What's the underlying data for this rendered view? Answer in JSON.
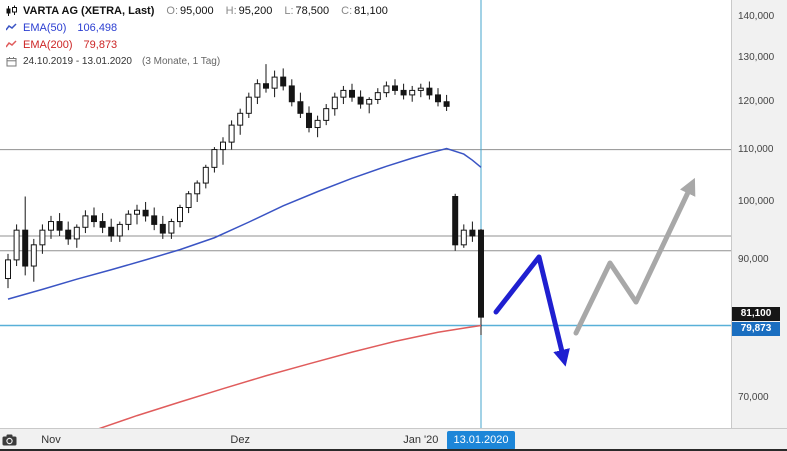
{
  "header": {
    "title": "VARTA AG (XETRA, Last)",
    "o_label": "O:",
    "o_value": "95,000",
    "h_label": "H:",
    "h_value": "95,200",
    "l_label": "L:",
    "l_value": "78,500",
    "c_label": "C:",
    "c_value": "81,100",
    "ema50_label": "EMA(50)",
    "ema50_value": "106,498",
    "ema200_label": "EMA(200)",
    "ema200_value": "79,873",
    "date_range": "24.10.2019 - 13.01.2020",
    "period_info": "(3 Monate, 1 Tag)"
  },
  "axes": {
    "y_ticks": [
      {
        "label": "140,000",
        "value": 140000
      },
      {
        "label": "130,000",
        "value": 130000
      },
      {
        "label": "120,000",
        "value": 120000
      },
      {
        "label": "110,000",
        "value": 110000
      },
      {
        "label": "100,000",
        "value": 100000
      },
      {
        "label": "90,000",
        "value": 90000
      },
      {
        "label": "70,000",
        "value": 70000
      }
    ],
    "x_labels": [
      {
        "label": "Nov",
        "index": 5
      },
      {
        "label": "Dez",
        "index": 27
      },
      {
        "label": "Jan '20",
        "index": 48
      }
    ],
    "last_price_badge": {
      "label": "81,100",
      "value": 81100,
      "bg": "#161616"
    },
    "line_badge": {
      "label": "79,873",
      "value": 79873,
      "bg": "#1a6ec0"
    },
    "date_badge": {
      "label": "13.01.2020",
      "bg": "#1d86d8"
    }
  },
  "icons": {
    "chart_type": "candlestick-icon",
    "ema50_swatch": "line-swatch-icon",
    "ema200_swatch": "line-swatch-icon",
    "date_range": "calendar-icon",
    "screenshot": "camera-icon"
  },
  "chart_data": {
    "type": "candlestick",
    "title": "VARTA AG (XETRA, Last)",
    "scale": "log",
    "ylim": [
      63000,
      141500
    ],
    "x_range_dates": [
      "24.10.2019",
      "13.01.2020"
    ],
    "x_unit": "trading day index from 24.10.2019",
    "grid": false,
    "candles": [
      [
        87000,
        91000,
        85500,
        90000
      ],
      [
        90000,
        96000,
        89000,
        95000
      ],
      [
        95000,
        101000,
        87500,
        89000
      ],
      [
        89000,
        93500,
        86500,
        92500
      ],
      [
        92500,
        96000,
        91000,
        95000
      ],
      [
        95000,
        97500,
        93500,
        96500
      ],
      [
        96500,
        98000,
        94000,
        95000
      ],
      [
        95000,
        96500,
        92500,
        93500
      ],
      [
        93500,
        96000,
        92000,
        95500
      ],
      [
        95500,
        98500,
        94500,
        97500
      ],
      [
        97500,
        99000,
        95500,
        96500
      ],
      [
        96500,
        98000,
        94500,
        95500
      ],
      [
        95500,
        97000,
        93000,
        94000
      ],
      [
        94000,
        96500,
        93000,
        96000
      ],
      [
        96000,
        98500,
        95000,
        97800
      ],
      [
        97800,
        99500,
        96000,
        98500
      ],
      [
        98500,
        100000,
        96500,
        97500
      ],
      [
        97500,
        99000,
        95000,
        96000
      ],
      [
        96000,
        97500,
        93500,
        94500
      ],
      [
        94500,
        97000,
        93500,
        96500
      ],
      [
        96500,
        99500,
        95500,
        99000
      ],
      [
        99000,
        102000,
        98000,
        101500
      ],
      [
        101500,
        104000,
        100000,
        103500
      ],
      [
        103500,
        107000,
        102500,
        106500
      ],
      [
        106500,
        110500,
        105500,
        110000
      ],
      [
        110000,
        112500,
        107000,
        111500
      ],
      [
        111500,
        116000,
        110000,
        115000
      ],
      [
        115000,
        118500,
        113000,
        117500
      ],
      [
        117500,
        122000,
        116500,
        121000
      ],
      [
        121000,
        125000,
        119500,
        124000
      ],
      [
        124000,
        128500,
        122000,
        123000
      ],
      [
        123000,
        127000,
        121000,
        125500
      ],
      [
        125500,
        127500,
        122500,
        123500
      ],
      [
        123500,
        125000,
        119000,
        120000
      ],
      [
        120000,
        122000,
        116500,
        117500
      ],
      [
        117500,
        119000,
        113500,
        114500
      ],
      [
        114500,
        117000,
        112500,
        116000
      ],
      [
        116000,
        119500,
        115000,
        118500
      ],
      [
        118500,
        122000,
        117000,
        121000
      ],
      [
        121000,
        123500,
        119500,
        122500
      ],
      [
        122500,
        124000,
        120000,
        121000
      ],
      [
        121000,
        122500,
        118500,
        119500
      ],
      [
        119500,
        121000,
        117500,
        120500
      ],
      [
        120500,
        123000,
        119500,
        122000
      ],
      [
        122000,
        124500,
        121000,
        123500
      ],
      [
        123500,
        125000,
        121500,
        122500
      ],
      [
        122500,
        124000,
        120500,
        121500
      ],
      [
        121500,
        123500,
        120000,
        122500
      ],
      [
        122500,
        124000,
        121000,
        123000
      ],
      [
        123000,
        124500,
        120500,
        121500
      ],
      [
        121500,
        123000,
        119000,
        120000
      ],
      [
        120000,
        121500,
        118000,
        119000
      ],
      [
        101000,
        101500,
        91500,
        92500
      ],
      [
        92500,
        96000,
        92000,
        95000
      ],
      [
        95000,
        96500,
        93000,
        94000
      ],
      [
        95000,
        95200,
        78500,
        81100
      ]
    ],
    "overlays": [
      {
        "name": "EMA(50)",
        "color": "#3a54c4",
        "latest": 106498,
        "points": [
          {
            "i": 0,
            "v": 83800
          },
          {
            "i": 4,
            "v": 85300
          },
          {
            "i": 8,
            "v": 86900
          },
          {
            "i": 12,
            "v": 88400
          },
          {
            "i": 16,
            "v": 90000
          },
          {
            "i": 20,
            "v": 91700
          },
          {
            "i": 24,
            "v": 93700
          },
          {
            "i": 28,
            "v": 96400
          },
          {
            "i": 32,
            "v": 99300
          },
          {
            "i": 36,
            "v": 101900
          },
          {
            "i": 40,
            "v": 104400
          },
          {
            "i": 44,
            "v": 106700
          },
          {
            "i": 47,
            "v": 108300
          },
          {
            "i": 49,
            "v": 109300
          },
          {
            "i": 51,
            "v": 110200
          },
          {
            "i": 53,
            "v": 109100
          },
          {
            "i": 54,
            "v": 107900
          },
          {
            "i": 55,
            "v": 106498
          }
        ]
      },
      {
        "name": "EMA(200)",
        "color": "#e05c5c",
        "latest": 79873,
        "points": [
          {
            "i": 5,
            "v": 64300
          },
          {
            "i": 10,
            "v": 66000
          },
          {
            "i": 15,
            "v": 67800
          },
          {
            "i": 20,
            "v": 69500
          },
          {
            "i": 25,
            "v": 71200
          },
          {
            "i": 30,
            "v": 72900
          },
          {
            "i": 35,
            "v": 74500
          },
          {
            "i": 40,
            "v": 76100
          },
          {
            "i": 45,
            "v": 77600
          },
          {
            "i": 50,
            "v": 78900
          },
          {
            "i": 53,
            "v": 79500
          },
          {
            "i": 55,
            "v": 79873
          }
        ]
      }
    ],
    "hlines": [
      {
        "value": 110000,
        "color": "#909090",
        "width": 1
      },
      {
        "value": 94000,
        "color": "#909090",
        "width": 1
      },
      {
        "value": 91500,
        "color": "#909090",
        "width": 1
      },
      {
        "value": 79873,
        "color": "#58b0d8",
        "width": 1.5
      }
    ],
    "vline": {
      "index": 55,
      "color": "#44a4cc",
      "label": "13.01.2020"
    },
    "annotations": [
      {
        "type": "arrow",
        "name": "bearish-scenario-arrow",
        "color": "#1f1fd0",
        "width": 5,
        "points": [
          [
            496,
            312
          ],
          [
            539,
            257
          ],
          [
            564,
            360
          ]
        ]
      },
      {
        "type": "arrow",
        "name": "bullish-scenario-arrow",
        "color": "#a8a8a8",
        "width": 5,
        "points": [
          [
            576,
            333
          ],
          [
            610,
            263
          ],
          [
            636,
            302
          ],
          [
            692,
            184
          ]
        ]
      }
    ]
  }
}
